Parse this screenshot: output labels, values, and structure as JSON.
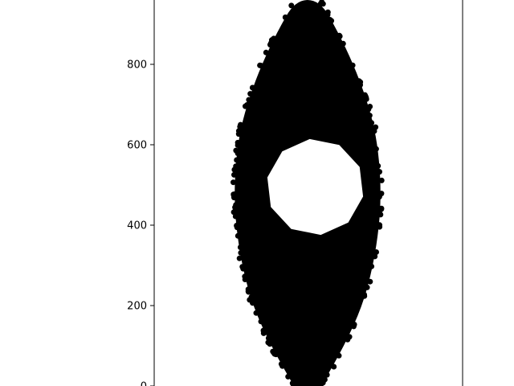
{
  "chart_data": {
    "type": "scatter",
    "title": "",
    "xlabel": "",
    "ylabel": "",
    "ylim": [
      0,
      960
    ],
    "y_ticks": [
      0,
      200,
      400,
      600,
      800
    ],
    "y_tick_labels": [
      "0",
      "200",
      "400",
      "600",
      "800"
    ],
    "x_ticks": [],
    "grid": false,
    "legend": "none",
    "colors": {
      "points": "#000000",
      "background": "#ffffff",
      "axes": "#000000"
    },
    "series": [
      {
        "description_of_shape": "dense black point cloud forming a vertical lens/spindle with an elliptical hole",
        "outer_boundary": [
          [
            0,
            0.0
          ],
          [
            0.5,
            1.0
          ],
          [
            0.5,
            -1.0
          ],
          [
            1,
            0.0
          ]
        ],
        "points_outer_profile_y": [
          0,
          100,
          200,
          300,
          400,
          480,
          560,
          640,
          720,
          800,
          880,
          960
        ],
        "points_outer_profile_halfwidth": [
          0.09,
          0.24,
          0.36,
          0.43,
          0.47,
          0.48,
          0.47,
          0.44,
          0.38,
          0.3,
          0.2,
          0.08
        ],
        "hole_center_y": 495,
        "hole_half_height_y": 120,
        "hole_halfwidth": 0.32,
        "hole_center_x": 0.05
      }
    ]
  }
}
